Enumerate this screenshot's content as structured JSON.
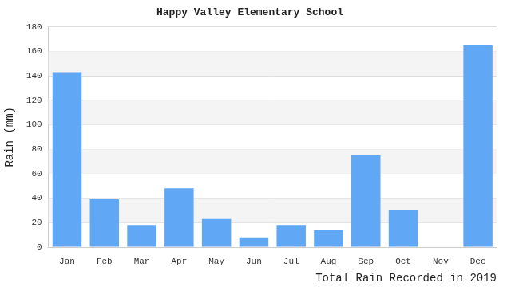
{
  "chart_data": {
    "type": "bar",
    "title": "Happy Valley Elementary School",
    "xlabel": "Total Rain Recorded in 2019",
    "ylabel": "Rain (mm)",
    "categories": [
      "Jan",
      "Feb",
      "Mar",
      "Apr",
      "May",
      "Jun",
      "Jul",
      "Aug",
      "Sep",
      "Oct",
      "Nov",
      "Dec"
    ],
    "values": [
      143,
      39,
      18,
      48,
      23,
      8,
      18,
      14,
      75,
      30,
      0,
      165
    ],
    "color": "#60a8f5",
    "ylim": [
      0,
      180
    ],
    "yticks": [
      0,
      20,
      40,
      60,
      80,
      100,
      120,
      140,
      160,
      180
    ],
    "grid": true
  }
}
